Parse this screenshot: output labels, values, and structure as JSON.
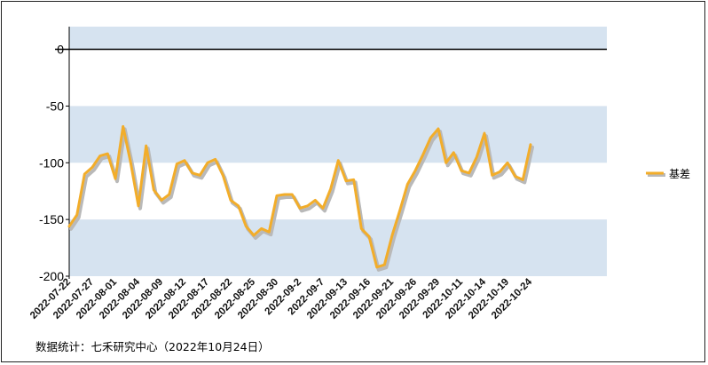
{
  "chart_data": {
    "type": "line",
    "title": "",
    "xlabel": "",
    "ylabel": "",
    "ylim": [
      -200,
      20
    ],
    "yticks": [
      0,
      -50,
      -100,
      -150,
      -200
    ],
    "grid": "horizontal bands",
    "legend_position": "right",
    "colors": {
      "line": "#f2ad2a",
      "shadow": "#b9b9b9",
      "band": "#d6e3f0",
      "zero_line": "#000000"
    },
    "x_tick_labels": [
      "2022-07-22",
      "2022-07-27",
      "2022-08-01",
      "2022-08-04",
      "2022-08-09",
      "2022-08-12",
      "2022-08-17",
      "2022-08-22",
      "2022-08-25",
      "2022-08-30",
      "2022-09-2",
      "2022-09-7",
      "2022-09-13",
      "2022-09-16",
      "2022-09-21",
      "2022-09-26",
      "2022-09-29",
      "2022-10-11",
      "2022-10-14",
      "2022-10-19",
      "2022-10-24"
    ],
    "series": [
      {
        "name": "基差",
        "values": [
          -156,
          -146,
          -110,
          -104,
          -94,
          -92,
          -114,
          -68,
          -100,
          -138,
          -85,
          -124,
          -133,
          -128,
          -101,
          -98,
          -109,
          -111,
          -100,
          -97,
          -111,
          -133,
          -138,
          -156,
          -164,
          -158,
          -161,
          -129,
          -128,
          -128,
          -140,
          -138,
          -133,
          -140,
          -123,
          -98,
          -116,
          -115,
          -158,
          -165,
          -192,
          -190,
          -164,
          -142,
          -119,
          -107,
          -93,
          -78,
          -70,
          -100,
          -91,
          -107,
          -109,
          -95,
          -74,
          -111,
          -108,
          -100,
          -112,
          -115,
          -84
        ]
      }
    ]
  },
  "source_text": "数据统计：七禾研究中心（2022年10月24日）"
}
